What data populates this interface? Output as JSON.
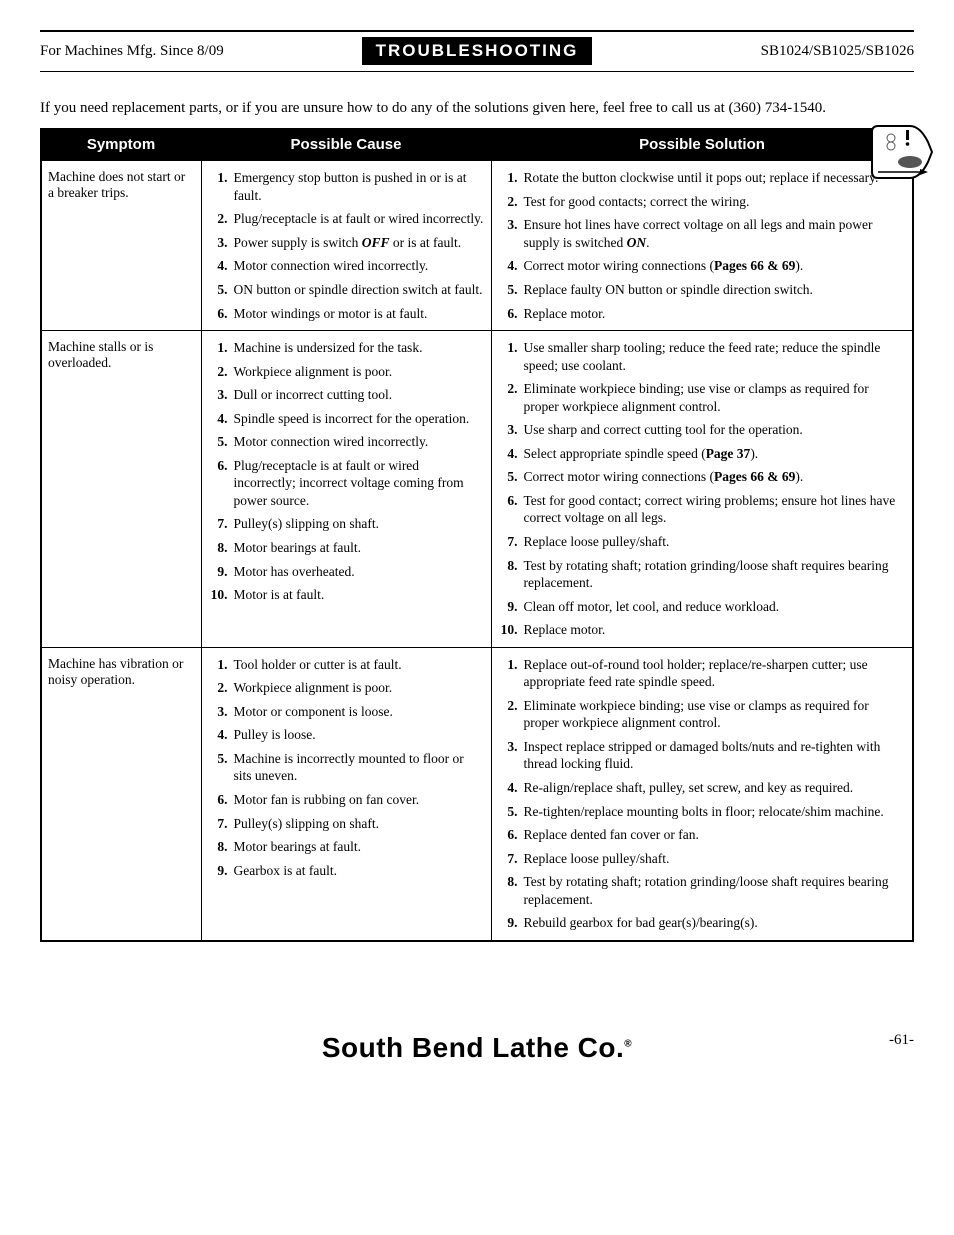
{
  "header": {
    "left": "For Machines Mfg. Since 8/09",
    "center": "TROUBLESHOOTING",
    "right": "SB1024/SB1025/SB1026"
  },
  "intro": "If you need replacement parts, or if you are unsure how to do any of the solutions given here, feel free to call us at (360) 734-1540.",
  "table": {
    "headers": {
      "symptom": "Symptom",
      "cause": "Possible Cause",
      "solution": "Possible Solution"
    },
    "rows": [
      {
        "symptom": "Machine does not start or a breaker trips.",
        "causes": [
          "Emergency stop button is pushed in or is at fault.",
          "Plug/receptacle is at fault or wired incorrectly.",
          "Power supply is switch <b><i>OFF</i></b> or is at fault.",
          "Motor connection wired incorrectly.",
          "ON button or spindle direction switch at fault.",
          "Motor windings or motor is at fault."
        ],
        "solutions": [
          "Rotate the button clockwise until it pops out; replace if necessary.",
          "Test for good contacts; correct the wiring.",
          "Ensure hot lines have correct voltage on all legs and main power supply is switched <b><i>ON</i></b>.",
          "Correct motor wiring connections (<b>Pages 66 &amp; 69</b>).",
          "Replace faulty ON button or spindle direction switch.",
          "Replace motor."
        ]
      },
      {
        "symptom": "Machine stalls or is overloaded.",
        "causes": [
          "Machine is undersized for the task.",
          "Workpiece alignment is poor.",
          "Dull or incorrect cutting tool.",
          "Spindle speed is incorrect for the operation.",
          "Motor connection wired incorrectly.",
          "Plug/receptacle is at fault or wired incorrectly; incorrect voltage coming from power source.",
          "Pulley(s) slipping on shaft.",
          "Motor bearings at fault.",
          "Motor has overheated.",
          "Motor is at fault."
        ],
        "solutions": [
          "Use smaller sharp tooling; reduce the feed rate; reduce the spindle speed; use coolant.",
          "Eliminate workpiece binding; use vise or clamps as required for proper workpiece alignment control.",
          "Use sharp and correct cutting tool for the operation.",
          "Select appropriate spindle speed (<b>Page 37</b>).",
          "Correct motor wiring connections (<b>Pages 66 &amp; 69</b>).",
          "Test for good contact; correct wiring problems; ensure hot lines have correct voltage on all legs.",
          "Replace loose pulley/shaft.",
          "Test by rotating shaft; rotation grinding/loose shaft requires bearing replacement.",
          "Clean off motor, let cool, and reduce workload.",
          "Replace motor."
        ]
      },
      {
        "symptom": "Machine has vibration or noisy operation.",
        "causes": [
          "Tool holder or cutter is at fault.",
          "Workpiece alignment is poor.",
          "Motor or component is loose.",
          "Pulley is loose.",
          "Machine is incorrectly mounted to floor or sits uneven.",
          "Motor fan is rubbing on fan cover.",
          "Pulley(s) slipping on shaft.",
          "Motor bearings at fault.",
          "Gearbox is at fault."
        ],
        "solutions": [
          "Replace out-of-round tool holder; replace/re-sharpen cutter; use appropriate feed rate spindle speed.",
          "Eliminate workpiece binding; use vise or clamps as required for proper workpiece alignment control.",
          "Inspect replace stripped or damaged bolts/nuts and re-tighten with thread locking fluid.",
          "Re-align/replace shaft, pulley, set screw, and key as required.",
          "Re-tighten/replace mounting bolts in floor; relocate/shim machine.",
          "Replace dented fan cover or fan.",
          "Replace loose pulley/shaft.",
          "Test by rotating shaft; rotation grinding/loose shaft requires bearing replacement.",
          "Rebuild gearbox for bad gear(s)/bearing(s)."
        ]
      }
    ]
  },
  "footer": {
    "brand": "South Bend Lathe Co.",
    "page": "-61-"
  }
}
